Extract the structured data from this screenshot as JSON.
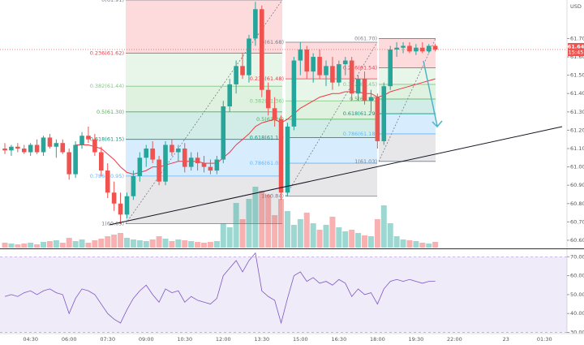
{
  "chart_data": {
    "type": "candlestick",
    "currency": "USD",
    "last_price": 61.64,
    "countdown": "15:45",
    "up_color": "#26a69a",
    "down_color": "#ef5350",
    "categories": [
      null,
      null,
      null,
      null,
      "04:30",
      null,
      null,
      null,
      null,
      null,
      "06:00",
      null,
      null,
      null,
      null,
      null,
      "07:30",
      null,
      null,
      null,
      null,
      null,
      "09:00",
      null,
      null,
      null,
      null,
      null,
      "10:30",
      null,
      null,
      null,
      null,
      null,
      "12:00",
      null,
      null,
      null,
      null,
      null,
      "13:30",
      null,
      null,
      null,
      null,
      null,
      "15:00",
      null,
      null,
      null,
      null,
      null,
      "16:30",
      null,
      null,
      null,
      null,
      null,
      "18:00",
      null,
      null,
      null,
      null,
      null,
      "19:30",
      null,
      null,
      null,
      null,
      null,
      "22:00",
      null,
      null,
      null,
      null,
      null,
      null,
      null,
      "23",
      null,
      null,
      null,
      null,
      null,
      "01:30",
      null,
      null,
      null
    ],
    "open": [
      61.1,
      61.09,
      61.11,
      61.1,
      61.08,
      61.12,
      61.08,
      61.16,
      61.11,
      61.13,
      61.08,
      60.96,
      61.12,
      61.17,
      61.15,
      61.08,
      60.98,
      60.86,
      60.8,
      60.74,
      60.84,
      60.95,
      61.05,
      61.1,
      61.04,
      60.92,
      61.12,
      61.08,
      61.1,
      61.0,
      61.05,
      61.02,
      61.0,
      60.98,
      61.04,
      61.33,
      61.45,
      61.55,
      61.5,
      61.7,
      61.86,
      61.42,
      61.32,
      61.26,
      60.86,
      61.22,
      61.58,
      61.64,
      61.52,
      61.6,
      61.5,
      61.55,
      61.46,
      61.56,
      61.58,
      61.4,
      61.48,
      61.36,
      61.38,
      61.14,
      61.44,
      61.64,
      61.65,
      61.66,
      61.63,
      61.65,
      61.63,
      61.66,
      null,
      null,
      null,
      null,
      null,
      null,
      null,
      null,
      null,
      null,
      null,
      null,
      null,
      null,
      null,
      null,
      null,
      null,
      null,
      null
    ],
    "high": [
      61.13,
      61.12,
      61.13,
      61.12,
      61.13,
      61.15,
      61.17,
      61.18,
      61.15,
      61.15,
      61.1,
      61.14,
      61.19,
      61.22,
      61.18,
      61.11,
      61.02,
      60.92,
      60.86,
      60.86,
      60.98,
      61.08,
      61.12,
      61.14,
      61.06,
      61.14,
      61.15,
      61.12,
      61.13,
      61.08,
      61.08,
      61.06,
      61.04,
      61.06,
      61.36,
      61.48,
      61.58,
      61.62,
      61.72,
      61.9,
      61.88,
      61.46,
      61.38,
      61.28,
      61.24,
      61.6,
      61.68,
      61.66,
      61.62,
      61.64,
      61.58,
      61.6,
      61.58,
      61.6,
      61.6,
      61.5,
      61.52,
      61.42,
      61.4,
      61.46,
      61.66,
      61.68,
      61.68,
      61.68,
      61.67,
      61.68,
      61.67,
      61.67,
      null,
      null,
      null,
      null,
      null,
      null,
      null,
      null,
      null,
      null,
      null,
      null,
      null,
      null,
      null,
      null,
      null,
      null,
      null,
      null
    ],
    "low": [
      61.07,
      61.06,
      61.08,
      61.07,
      61.06,
      61.07,
      61.06,
      61.1,
      61.05,
      61.07,
      60.93,
      60.94,
      61.1,
      61.13,
      61.06,
      60.95,
      60.83,
      60.76,
      60.69,
      60.72,
      60.82,
      60.92,
      61.0,
      61.02,
      60.9,
      60.9,
      61.06,
      61.03,
      60.97,
      60.98,
      60.98,
      60.97,
      60.96,
      60.96,
      61.02,
      61.3,
      61.4,
      61.48,
      61.46,
      61.66,
      61.38,
      61.28,
      61.22,
      60.82,
      60.84,
      61.2,
      61.5,
      61.48,
      61.46,
      61.48,
      61.44,
      61.42,
      61.44,
      61.5,
      61.36,
      61.36,
      61.34,
      61.3,
      61.1,
      61.12,
      61.42,
      61.6,
      61.62,
      61.62,
      61.61,
      61.62,
      61.62,
      61.63,
      null,
      null,
      null,
      null,
      null,
      null,
      null,
      null,
      null,
      null,
      null,
      null,
      null,
      null,
      null,
      null,
      null,
      null,
      null,
      null
    ],
    "close": [
      61.09,
      61.11,
      61.1,
      61.08,
      61.12,
      61.08,
      61.16,
      61.11,
      61.13,
      61.08,
      60.96,
      61.12,
      61.17,
      61.15,
      61.08,
      60.98,
      60.86,
      60.8,
      60.74,
      60.84,
      60.95,
      61.05,
      61.1,
      61.04,
      60.92,
      61.12,
      61.08,
      61.1,
      61.0,
      61.05,
      61.02,
      61.0,
      60.98,
      61.04,
      61.33,
      61.45,
      61.55,
      61.5,
      61.7,
      61.86,
      61.42,
      61.32,
      61.26,
      60.86,
      61.22,
      61.58,
      61.64,
      61.52,
      61.6,
      61.5,
      61.55,
      61.46,
      61.56,
      61.58,
      61.4,
      61.48,
      61.36,
      61.38,
      61.14,
      61.44,
      61.64,
      61.65,
      61.66,
      61.63,
      61.65,
      61.63,
      61.66,
      61.64,
      null,
      null,
      null,
      null,
      null,
      null,
      null,
      null,
      null,
      null,
      null,
      null,
      null,
      null,
      null,
      null,
      null,
      null,
      null,
      null
    ],
    "ylim": [
      60.56,
      61.91
    ],
    "yticks": [
      {
        "value": 61.7,
        "label": "61.70"
      },
      {
        "value": 61.6,
        "label": "61.60"
      },
      {
        "value": 61.5,
        "label": "61.50"
      },
      {
        "value": 61.4,
        "label": "61.40"
      },
      {
        "value": 61.3,
        "label": "61.30"
      },
      {
        "value": 61.2,
        "label": "61.20"
      },
      {
        "value": 61.1,
        "label": "61.10"
      },
      {
        "value": 61.0,
        "label": "61.00"
      },
      {
        "value": 60.9,
        "label": "60.90"
      },
      {
        "value": 60.8,
        "label": "60.80"
      },
      {
        "value": 60.7,
        "label": "60.70"
      },
      {
        "value": 60.6,
        "label": "60.60"
      }
    ],
    "ma": {
      "color": "#f23645",
      "values": [
        null,
        null,
        null,
        null,
        null,
        null,
        null,
        null,
        null,
        null,
        null,
        61.12,
        61.12,
        61.12,
        61.11,
        61.1,
        61.07,
        61.04,
        61.0,
        60.97,
        60.96,
        60.97,
        60.98,
        61.0,
        61.0,
        61.01,
        61.02,
        61.03,
        61.03,
        61.03,
        61.03,
        61.02,
        61.02,
        61.02,
        61.05,
        61.08,
        61.12,
        61.15,
        61.18,
        61.22,
        61.24,
        61.25,
        61.26,
        61.24,
        61.26,
        61.29,
        61.32,
        61.34,
        61.36,
        61.38,
        61.39,
        61.4,
        61.4,
        61.41,
        61.41,
        61.41,
        61.4,
        61.4,
        61.38,
        61.39,
        61.41,
        61.42,
        61.43,
        61.44,
        61.45,
        61.46,
        61.47,
        61.48,
        null,
        null,
        null,
        null,
        null,
        null,
        null,
        null,
        null,
        null,
        null,
        null,
        null,
        null,
        null,
        null,
        null,
        null,
        null,
        null
      ]
    },
    "volume": {
      "ylim": [
        0,
        305
      ],
      "values": [
        6,
        5,
        4,
        5,
        6,
        4,
        7,
        8,
        9,
        6,
        12,
        8,
        10,
        6,
        9,
        11,
        14,
        16,
        18,
        12,
        10,
        9,
        8,
        10,
        14,
        11,
        8,
        10,
        9,
        8,
        7,
        6,
        7,
        8,
        30,
        25,
        55,
        35,
        60,
        75,
        70,
        65,
        40,
        60,
        45,
        28,
        35,
        43,
        30,
        22,
        28,
        38,
        25,
        20,
        22,
        18,
        15,
        14,
        35,
        52,
        30,
        14,
        10,
        9,
        8,
        6,
        5,
        7,
        null,
        null,
        null,
        null,
        null,
        null,
        null,
        null,
        null,
        null,
        null,
        null,
        null,
        null,
        null,
        null,
        null,
        null,
        null,
        null
      ]
    },
    "rsi": {
      "color": "#7e57c2",
      "ylim": [
        29.8,
        72.7
      ],
      "yticks": [
        {
          "value": 70,
          "label": "70.00"
        },
        {
          "value": 60,
          "label": "60.00"
        },
        {
          "value": 50,
          "label": "50.00"
        },
        {
          "value": 40,
          "label": "40.00"
        },
        {
          "value": 30,
          "label": "30.00"
        }
      ],
      "values": [
        49,
        50,
        49,
        51,
        52,
        50,
        52,
        53,
        51,
        50,
        40,
        48,
        53,
        52,
        50,
        45,
        40,
        37,
        35,
        42,
        48,
        52,
        55,
        50,
        46,
        53,
        51,
        52,
        46,
        49,
        47,
        46,
        45,
        48,
        60,
        64,
        68,
        62,
        68,
        72,
        52,
        49,
        47,
        35,
        48,
        60,
        62,
        57,
        59,
        56,
        57,
        55,
        58,
        56,
        49,
        53,
        50,
        51,
        45,
        53,
        57,
        58,
        57,
        58,
        57,
        56,
        57,
        57,
        null,
        null,
        null,
        null,
        null,
        null,
        null,
        null,
        null,
        null,
        null,
        null,
        null,
        null,
        null,
        null,
        null,
        null,
        null,
        null
      ]
    },
    "fibs": [
      {
        "levels": [
          {
            "value": 61.91,
            "label": "0(61.91)"
          },
          {
            "value": 61.62,
            "label": "0.236(61.62)"
          },
          {
            "value": 61.44,
            "label": "0.382(61.44)"
          },
          {
            "value": 61.3,
            "label": "0.5(61.30)"
          },
          {
            "value": 61.15,
            "label": "0.618(61.15)"
          },
          {
            "value": 60.95,
            "label": "0.786(60.95)"
          },
          {
            "value": 60.69,
            "label": "1(60.69)"
          }
        ]
      },
      {
        "levels": [
          {
            "value": 61.68,
            "label": "0(61.68)"
          },
          {
            "value": 61.48,
            "label": "0.236(61.48)"
          },
          {
            "value": 61.36,
            "label": "0.382(61.36)"
          },
          {
            "value": 61.26,
            "label": "0.5(61.26)"
          },
          {
            "value": 61.16,
            "label": "0.618(61.16)"
          },
          {
            "value": 61.02,
            "label": "0.786(61.02)"
          },
          {
            "value": 60.84,
            "label": "1(60.84)"
          }
        ]
      },
      {
        "levels": [
          {
            "value": 61.7,
            "label": "0(61.70)"
          },
          {
            "value": 61.54,
            "label": "0.236(61.54)"
          },
          {
            "value": 61.45,
            "label": "0.382(61.45)"
          },
          {
            "value": 61.37,
            "label": "0.5(61.37)"
          },
          {
            "value": 61.29,
            "label": "0.618(61.29)"
          },
          {
            "value": 61.18,
            "label": "0.786(61.18)"
          },
          {
            "value": 61.03,
            "label": "1(61.03)"
          }
        ]
      }
    ]
  }
}
